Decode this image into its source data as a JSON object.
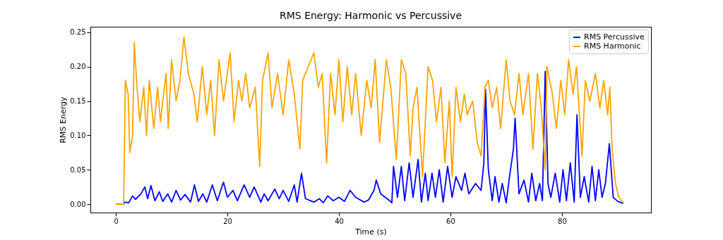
{
  "chart_data": {
    "type": "line",
    "title": "RMS Energy: Harmonic vs Percussive",
    "xlabel": "Time (s)",
    "ylabel": "RMS Energy",
    "xlim": [
      -4.57,
      95.97
    ],
    "xticks": [
      0,
      20,
      40,
      60,
      80
    ],
    "ylim": [
      -0.0122,
      0.258
    ],
    "yticks": [
      {
        "value": 0,
        "label": "0.00"
      },
      {
        "value": 0.05,
        "label": "0.05"
      },
      {
        "value": 0.1,
        "label": "0.10"
      },
      {
        "value": 0.15,
        "label": "0.15"
      },
      {
        "value": 0.2,
        "label": "0.20"
      },
      {
        "value": 0.25,
        "label": "0.25"
      }
    ],
    "grid": false,
    "legend": "top right",
    "marker": "none",
    "line_style": "solid",
    "series": [
      {
        "name": "RMS Percussive",
        "color": "#0000ff",
        "x": [
          0,
          1.4,
          1.6,
          2.3,
          3,
          3.5,
          4.5,
          5.2,
          5.7,
          6.3,
          7,
          7.8,
          8.4,
          9.3,
          10,
          10.8,
          11.6,
          12.4,
          13.4,
          14.1,
          14.8,
          15.6,
          16.3,
          17.3,
          18.2,
          19.3,
          20,
          21,
          21.8,
          23,
          24,
          24.8,
          26,
          26.6,
          27.3,
          28.5,
          29.3,
          30,
          31,
          32,
          32.5,
          33.3,
          34,
          35.5,
          36.5,
          37.2,
          38,
          39,
          40,
          41,
          42,
          43,
          44.5,
          45.3,
          46.3,
          46.7,
          47.5,
          48.8,
          49.5,
          49.8,
          50.5,
          51.2,
          51.8,
          52.6,
          53.3,
          54.2,
          54.8,
          55.5,
          56,
          56.7,
          57.3,
          58,
          58.7,
          59.5,
          60.3,
          61,
          62,
          62.6,
          63.3,
          64.5,
          65.5,
          66,
          66.3,
          66.8,
          67.5,
          68,
          68.7,
          69.3,
          70,
          70.6,
          71.3,
          71.6,
          72.3,
          73.2,
          74,
          74.6,
          75.3,
          76,
          76.5,
          77,
          77.5,
          78,
          78.8,
          79.6,
          80.2,
          80.8,
          81.5,
          82.2,
          82.7,
          83.3,
          84,
          84.8,
          85.4,
          86,
          86.6,
          87.2,
          87.8,
          88.5,
          89.2,
          90,
          91
        ],
        "values": [
          0,
          0,
          0.003,
          0.002,
          0.012,
          0.007,
          0.015,
          0.025,
          0.008,
          0.027,
          0.005,
          0.018,
          0.004,
          0.015,
          0.003,
          0.02,
          0.006,
          0.014,
          0.003,
          0.028,
          0.004,
          0.015,
          0.003,
          0.028,
          0.005,
          0.032,
          0.01,
          0.02,
          0.005,
          0.028,
          0.01,
          0.025,
          0.003,
          0.015,
          0.005,
          0.022,
          0.008,
          0.02,
          0.004,
          0.028,
          0.003,
          0.045,
          0.008,
          0.003,
          0.008,
          0.002,
          0.012,
          0.005,
          0.01,
          0.004,
          0.02,
          0.01,
          0.003,
          0.006,
          0.02,
          0.035,
          0.015,
          0.007,
          0.002,
          0.055,
          0.01,
          0.055,
          0.005,
          0.06,
          0.01,
          0.065,
          0.003,
          0.045,
          0.005,
          0.045,
          0.01,
          0.05,
          0.003,
          0.055,
          0.01,
          0.04,
          0.02,
          0.045,
          0.015,
          0.03,
          0.02,
          0.06,
          0.167,
          0.05,
          0.005,
          0.04,
          0.003,
          0.03,
          0.002,
          0.04,
          0.08,
          0.125,
          0.015,
          0.035,
          0.003,
          0.045,
          0.005,
          0.03,
          0.005,
          0.193,
          0.03,
          0.01,
          0.045,
          0.003,
          0.05,
          0.005,
          0.06,
          0.003,
          0.13,
          0.01,
          0.04,
          0.003,
          0.055,
          0.005,
          0.05,
          0.01,
          0.03,
          0.088,
          0.01,
          0.004,
          0.001
        ]
      },
      {
        "name": "RMS Harmonic",
        "color": "#ffa500",
        "x": [
          0,
          1.4,
          1.7,
          2.2,
          2.5,
          3,
          3.3,
          3.8,
          4.3,
          5,
          5.5,
          6,
          6.8,
          7.5,
          8,
          9,
          9.4,
          10,
          10.8,
          11.5,
          12.2,
          13,
          14,
          14.6,
          15.5,
          16.3,
          17,
          17.7,
          18.5,
          19.3,
          20.5,
          21.2,
          22,
          22.6,
          23.3,
          24,
          25,
          25.8,
          26.3,
          27.3,
          28,
          29,
          30,
          31,
          32,
          33,
          33.5,
          35.5,
          36.3,
          37,
          37.8,
          38.5,
          39.3,
          40,
          40.7,
          41.5,
          42.3,
          43,
          44,
          45,
          45.8,
          46.5,
          47.3,
          48.5,
          49.3,
          50.3,
          51.2,
          52,
          52.8,
          53.3,
          54,
          55,
          56,
          56.8,
          57.5,
          58.3,
          59,
          59.8,
          60.3,
          61,
          61.8,
          62.5,
          63,
          64,
          64.8,
          65.5,
          66.2,
          66.8,
          67.5,
          68.3,
          69,
          70,
          70.7,
          71.5,
          72.3,
          73,
          74,
          74.8,
          75.6,
          76.3,
          77,
          77.3,
          78.3,
          79,
          79.8,
          80.5,
          81.2,
          82,
          82.6,
          83.6,
          84.2,
          85,
          86,
          86.8,
          87.5,
          88.2,
          88.6,
          89,
          89.6,
          90.2,
          91
        ],
        "values": [
          0,
          0,
          0.18,
          0.16,
          0.075,
          0.1,
          0.235,
          0.17,
          0.12,
          0.17,
          0.1,
          0.18,
          0.11,
          0.17,
          0.12,
          0.19,
          0.11,
          0.21,
          0.15,
          0.18,
          0.243,
          0.19,
          0.16,
          0.12,
          0.2,
          0.13,
          0.18,
          0.1,
          0.21,
          0.15,
          0.22,
          0.12,
          0.18,
          0.15,
          0.19,
          0.14,
          0.17,
          0.055,
          0.18,
          0.22,
          0.14,
          0.19,
          0.13,
          0.21,
          0.16,
          0.08,
          0.18,
          0.22,
          0.17,
          0.19,
          0.06,
          0.19,
          0.13,
          0.21,
          0.12,
          0.2,
          0.13,
          0.19,
          0.1,
          0.18,
          0.14,
          0.21,
          0.09,
          0.21,
          0.17,
          0.065,
          0.21,
          0.19,
          0.07,
          0.14,
          0.17,
          0.04,
          0.2,
          0.18,
          0.12,
          0.17,
          0.06,
          0.15,
          0.04,
          0.17,
          0.12,
          0.16,
          0.13,
          0.15,
          0.09,
          0.07,
          0.17,
          0.18,
          0.14,
          0.17,
          0.11,
          0.21,
          0.15,
          0.13,
          0.19,
          0.13,
          0.19,
          0.08,
          0.19,
          0.14,
          0.05,
          0.2,
          0.16,
          0.11,
          0.18,
          0.13,
          0.21,
          0.16,
          0.2,
          0.07,
          0.18,
          0.15,
          0.19,
          0.14,
          0.18,
          0.13,
          0.17,
          0.08,
          0.03,
          0.01,
          0.002
        ]
      }
    ]
  }
}
